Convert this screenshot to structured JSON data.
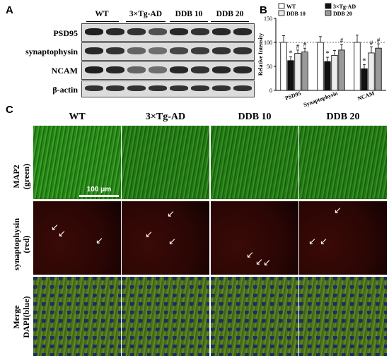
{
  "panels": {
    "a": "A",
    "b": "B",
    "c": "C"
  },
  "western": {
    "groups": [
      "WT",
      "3×Tg-AD",
      "DDB 10",
      "DDB 20"
    ],
    "proteins": [
      "PSD95",
      "synaptophysin",
      "NCAM",
      "β-actin"
    ]
  },
  "chart_data": {
    "type": "bar",
    "ylabel": "Relative Intensity",
    "ylim": [
      0,
      150
    ],
    "yticks": [
      0,
      50,
      100,
      150
    ],
    "categories": [
      "PSD95",
      "Synaptophysin",
      "NCAM"
    ],
    "reference_line": 100,
    "legend": {
      "placement": "top",
      "entries": [
        "WT",
        "3×Tg-AD",
        "DDB 10",
        "DDB 20"
      ]
    },
    "series": [
      {
        "name": "WT",
        "color": "#ffffff",
        "values": [
          100,
          100,
          100
        ],
        "errors": [
          14,
          12,
          15
        ]
      },
      {
        "name": "3×Tg-AD",
        "color": "#111111",
        "values": [
          62,
          60,
          45
        ],
        "errors": [
          8,
          9,
          9
        ]
      },
      {
        "name": "DDB 10",
        "color": "#ececec",
        "values": [
          77,
          73,
          78
        ],
        "errors": [
          7,
          10,
          13
        ]
      },
      {
        "name": "DDB 20",
        "color": "#9a9a9a",
        "values": [
          80,
          84,
          88
        ],
        "errors": [
          8,
          12,
          9
        ]
      }
    ],
    "annotations": [
      {
        "category": "PSD95",
        "series": "3×Tg-AD",
        "text": "*"
      },
      {
        "category": "PSD95",
        "series": "DDB 10",
        "text": "#"
      },
      {
        "category": "PSD95",
        "series": "DDB 20",
        "text": "#"
      },
      {
        "category": "Synaptophysin",
        "series": "3×Tg-AD",
        "text": "*"
      },
      {
        "category": "Synaptophysin",
        "series": "DDB 20",
        "text": "#"
      },
      {
        "category": "NCAM",
        "series": "3×Tg-AD",
        "text": "*"
      },
      {
        "category": "NCAM",
        "series": "DDB 10",
        "text": "#"
      },
      {
        "category": "NCAM",
        "series": "DDB 20",
        "text": "#"
      }
    ]
  },
  "micrographs": {
    "columns": [
      "WT",
      "3×Tg-AD",
      "DDB 10",
      "DDB 20"
    ],
    "rows": [
      {
        "label_line1": "MAP2",
        "label_line2": "(green)"
      },
      {
        "label_line1": "synaptophysin",
        "label_line2": "(red)"
      },
      {
        "label_line1": "Merge",
        "label_line2": "DAPI(blue)"
      }
    ],
    "scale_bar": "100 μm",
    "colors": {
      "map2": "#2f9a1e",
      "synaptophysin": "#2a0604",
      "merge": "#4d7a20"
    }
  }
}
